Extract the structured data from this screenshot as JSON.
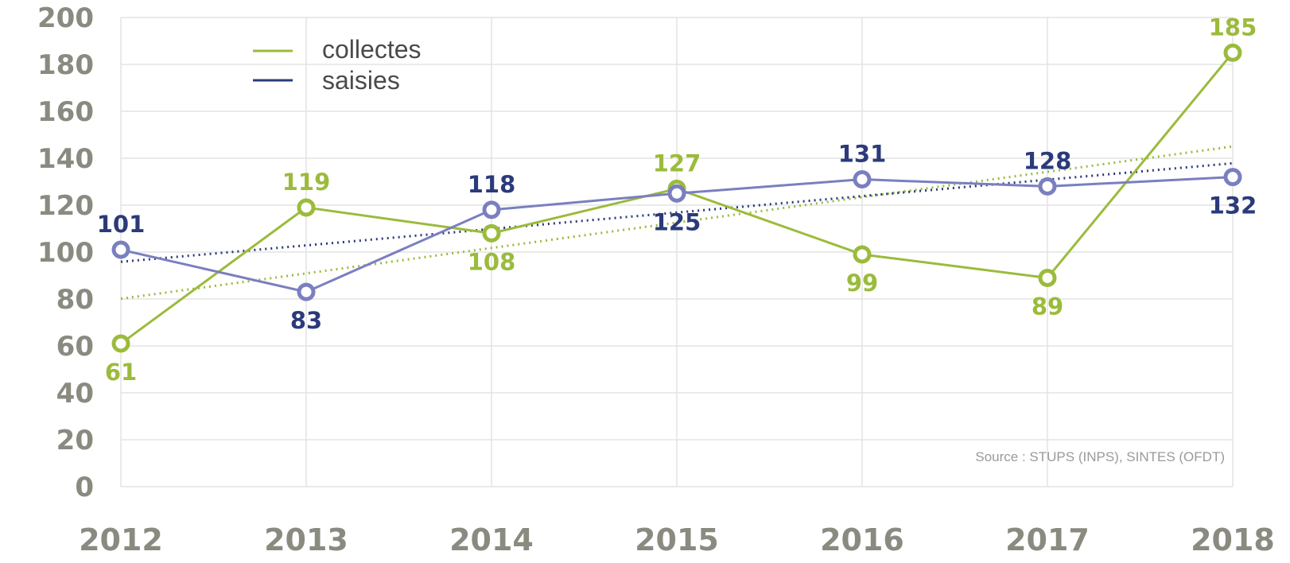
{
  "chart_data": {
    "type": "line",
    "categories": [
      "2012",
      "2013",
      "2014",
      "2015",
      "2016",
      "2017",
      "2018"
    ],
    "ylim": [
      0,
      200
    ],
    "yticks": [
      "0",
      "20",
      "40",
      "60",
      "80",
      "100",
      "120",
      "140",
      "160",
      "180",
      "200"
    ],
    "grid": true,
    "legend_position": "top-left",
    "series": [
      {
        "name": "collectes",
        "color": "#9bbb3c",
        "values": [
          61,
          119,
          108,
          127,
          99,
          89,
          185
        ],
        "labels": [
          "61",
          "119",
          "108",
          "127",
          "99",
          "89",
          "185"
        ],
        "label_position": [
          "below",
          "above",
          "below",
          "above",
          "below",
          "below",
          "above"
        ],
        "trendline": true
      },
      {
        "name": "saisies",
        "color": "#7a7fc0",
        "label_color": "#2b3a7a",
        "values": [
          101,
          83,
          118,
          125,
          131,
          128,
          132
        ],
        "labels": [
          "101",
          "83",
          "118",
          "125",
          "131",
          "128",
          "132"
        ],
        "label_position": [
          "above",
          "below",
          "above",
          "below",
          "above",
          "above",
          "below"
        ],
        "trendline": true
      }
    ],
    "annotations": [
      "Source : STUPS (INPS), SINTES (OFDT)"
    ]
  }
}
